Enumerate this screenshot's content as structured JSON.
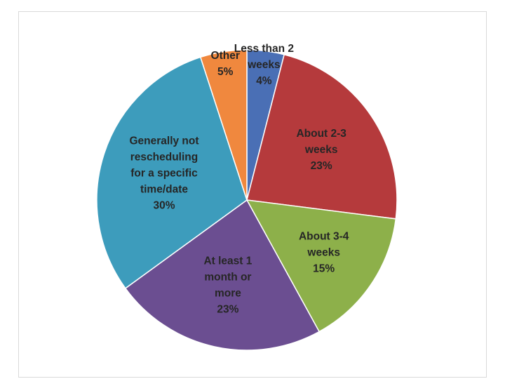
{
  "chart_data": {
    "type": "pie",
    "title": "",
    "start_angle_deg": 0,
    "direction": "clockwise",
    "legend": "none",
    "slices": [
      {
        "name": "Less than 2 weeks",
        "value": 4,
        "label_lines": [
          "Less than 2",
          "weeks",
          "4%"
        ],
        "color": "#4a6fb5"
      },
      {
        "name": "About 2-3 weeks",
        "value": 23,
        "label_lines": [
          "About 2-3",
          "weeks",
          "23%"
        ],
        "color": "#b53a3c"
      },
      {
        "name": "About 3-4 weeks",
        "value": 15,
        "label_lines": [
          "About 3-4",
          "weeks",
          "15%"
        ],
        "color": "#8db04a"
      },
      {
        "name": "At least 1 month or more",
        "value": 23,
        "label_lines": [
          "At least 1",
          "month or",
          "more",
          "23%"
        ],
        "color": "#6b4e91"
      },
      {
        "name": "Generally not rescheduling for a specific time/date",
        "value": 30,
        "label_lines": [
          "Generally not",
          "rescheduling",
          "for a specific",
          "time/date",
          "30%"
        ],
        "color": "#3d9cbc"
      },
      {
        "name": "Other",
        "value": 5,
        "label_lines": [
          "Other",
          "5%"
        ],
        "color": "#f0883e"
      }
    ]
  }
}
